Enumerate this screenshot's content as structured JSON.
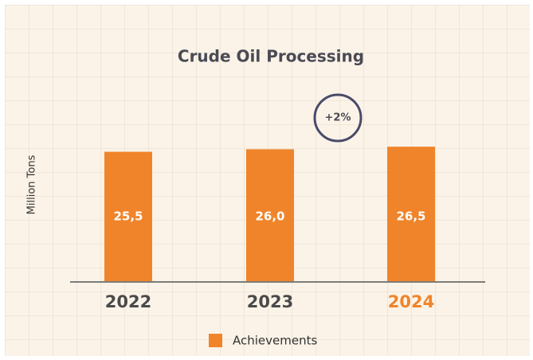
{
  "chart_data": {
    "type": "bar",
    "title": "Crude Oil Processing",
    "y_label": "Million Tons",
    "categories": [
      "2022",
      "2023",
      "2024"
    ],
    "category_colors": [
      "#4a4a4a",
      "#4a4a4a",
      "#f0842a"
    ],
    "series": [
      {
        "name": "Achievements",
        "color": "#f0842a",
        "values": [
          25.5,
          26.0,
          26.5
        ],
        "value_labels": [
          "25,5",
          "26,0",
          "26,5"
        ]
      }
    ],
    "ylim": [
      0,
      27
    ],
    "annotation": "+2%",
    "legend": "bottom"
  }
}
